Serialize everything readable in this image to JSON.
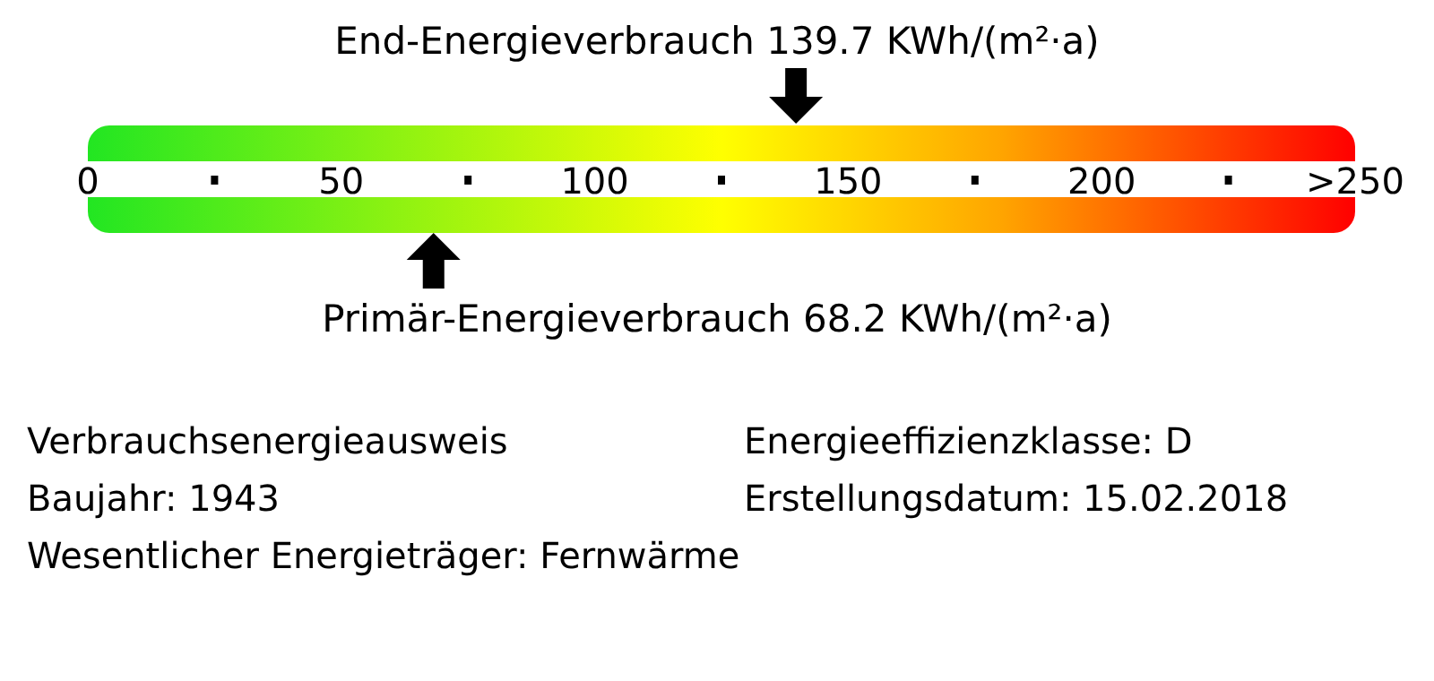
{
  "chart_data": {
    "type": "scatter",
    "orientation": "horizontal",
    "categories": [
      "End-Energieverbrauch 139.7 KWh/(m²·a)",
      "Primär-Energieverbrauch 68.2 KWh/(m²·a)"
    ],
    "values": [
      139.7,
      68.2
    ],
    "xlim": [
      0,
      250
    ],
    "xticks": [
      0,
      50,
      100,
      150,
      200,
      {
        "value": 250,
        "label": ">250"
      }
    ],
    "bands": [
      {
        "axis": "x",
        "from": 0,
        "to": 250
      }
    ],
    "annotations": [
      "Verbrauchsenergieausweis",
      "Energieeffizienzklasse: D",
      "Baujahr: 1943",
      "Erstellungsdatum: 15.02.2018",
      "Wesentlicher Energieträger: Fernwärme"
    ]
  }
}
